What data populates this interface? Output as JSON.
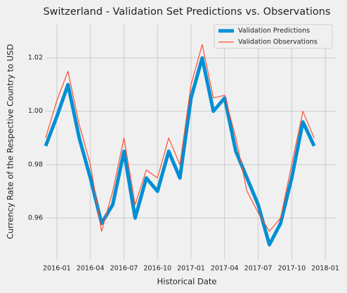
{
  "chart_data": {
    "type": "line",
    "title": "Switzerland - Validation Set Predictions vs. Observations",
    "xlabel": "Historical Date",
    "ylabel": "Currency Rate of the Respective Country to USD",
    "x": [
      "2015-12",
      "2016-01",
      "2016-02",
      "2016-03",
      "2016-04",
      "2016-05",
      "2016-06",
      "2016-07",
      "2016-08",
      "2016-09",
      "2016-10",
      "2016-11",
      "2016-12",
      "2017-01",
      "2017-02",
      "2017-03",
      "2017-04",
      "2017-05",
      "2017-06",
      "2017-07",
      "2017-08",
      "2017-09",
      "2017-10",
      "2017-11",
      "2017-12"
    ],
    "series": [
      {
        "name": "Validation Predictions",
        "color": "#008fd5",
        "width": 5,
        "values": [
          0.987,
          0.998,
          1.01,
          0.99,
          0.975,
          0.958,
          0.965,
          0.985,
          0.96,
          0.975,
          0.97,
          0.985,
          0.975,
          1.005,
          1.02,
          1.0,
          1.005,
          0.985,
          0.975,
          0.965,
          0.95,
          0.958,
          0.975,
          0.996,
          0.987
        ]
      },
      {
        "name": "Validation Observations",
        "color": "#fc4f30",
        "width": 1.2,
        "values": [
          0.99,
          1.004,
          1.015,
          0.995,
          0.98,
          0.955,
          0.97,
          0.99,
          0.965,
          0.978,
          0.975,
          0.99,
          0.98,
          1.01,
          1.025,
          1.005,
          1.006,
          0.99,
          0.97,
          0.962,
          0.955,
          0.96,
          0.98,
          1.0,
          0.99
        ]
      }
    ],
    "xlim": [
      "2015-12",
      "2018-02"
    ],
    "xticks": [
      "2016-01",
      "2016-04",
      "2016-07",
      "2016-10",
      "2017-01",
      "2017-04",
      "2017-07",
      "2017-10",
      "2018-01"
    ],
    "ylim": [
      0.9445,
      1.0325
    ],
    "yticks": [
      0.96,
      0.98,
      {
        "value": 1.0,
        "label": "1.00"
      },
      1.02
    ],
    "grid": true,
    "legend": "upper right"
  }
}
